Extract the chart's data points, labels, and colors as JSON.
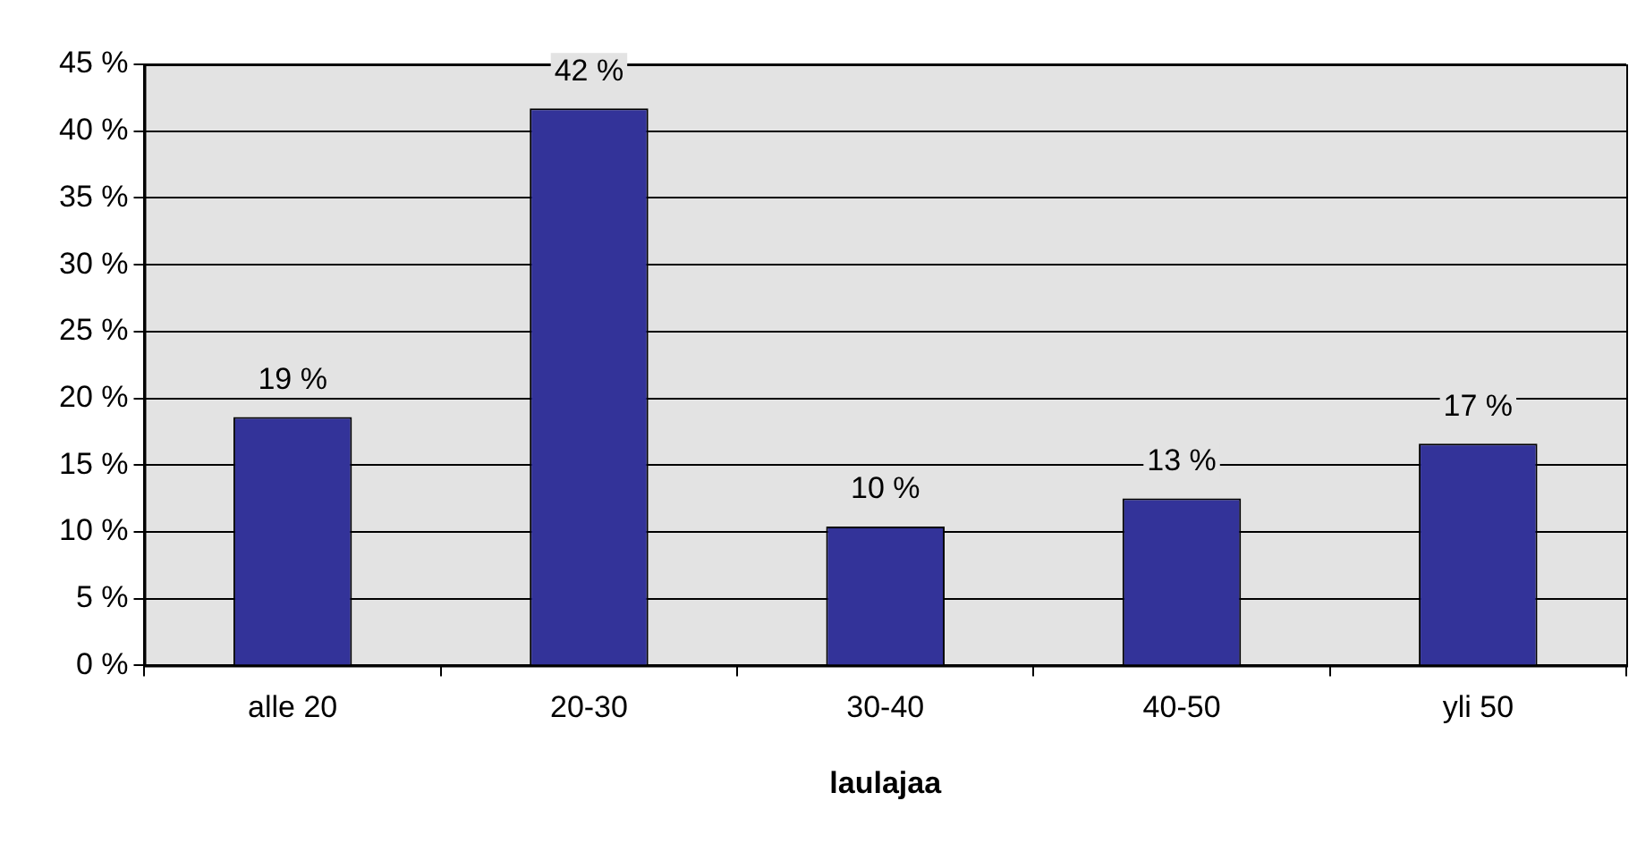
{
  "chart_data": {
    "type": "bar",
    "xlabel": "laulajaa",
    "categories": [
      "alle 20",
      "20-30",
      "30-40",
      "40-50",
      "yli 50"
    ],
    "values": [
      18.6,
      41.7,
      10.4,
      12.5,
      16.6
    ],
    "value_labels": [
      "19 %",
      "42 %",
      "10 %",
      "13 %",
      "17 %"
    ],
    "color": "#333399",
    "ylim": [
      0,
      45
    ],
    "yticks": [
      {
        "value": 0,
        "label": "0 %"
      },
      {
        "value": 5,
        "label": "5 %"
      },
      {
        "value": 10,
        "label": "10 %"
      },
      {
        "value": 15,
        "label": "15 %"
      },
      {
        "value": 20,
        "label": "20 %"
      },
      {
        "value": 25,
        "label": "25 %"
      },
      {
        "value": 30,
        "label": "30 %"
      },
      {
        "value": 35,
        "label": "35 %"
      },
      {
        "value": 40,
        "label": "40 %"
      },
      {
        "value": 45,
        "label": "45 %"
      }
    ],
    "grid": "y",
    "legend": false
  }
}
